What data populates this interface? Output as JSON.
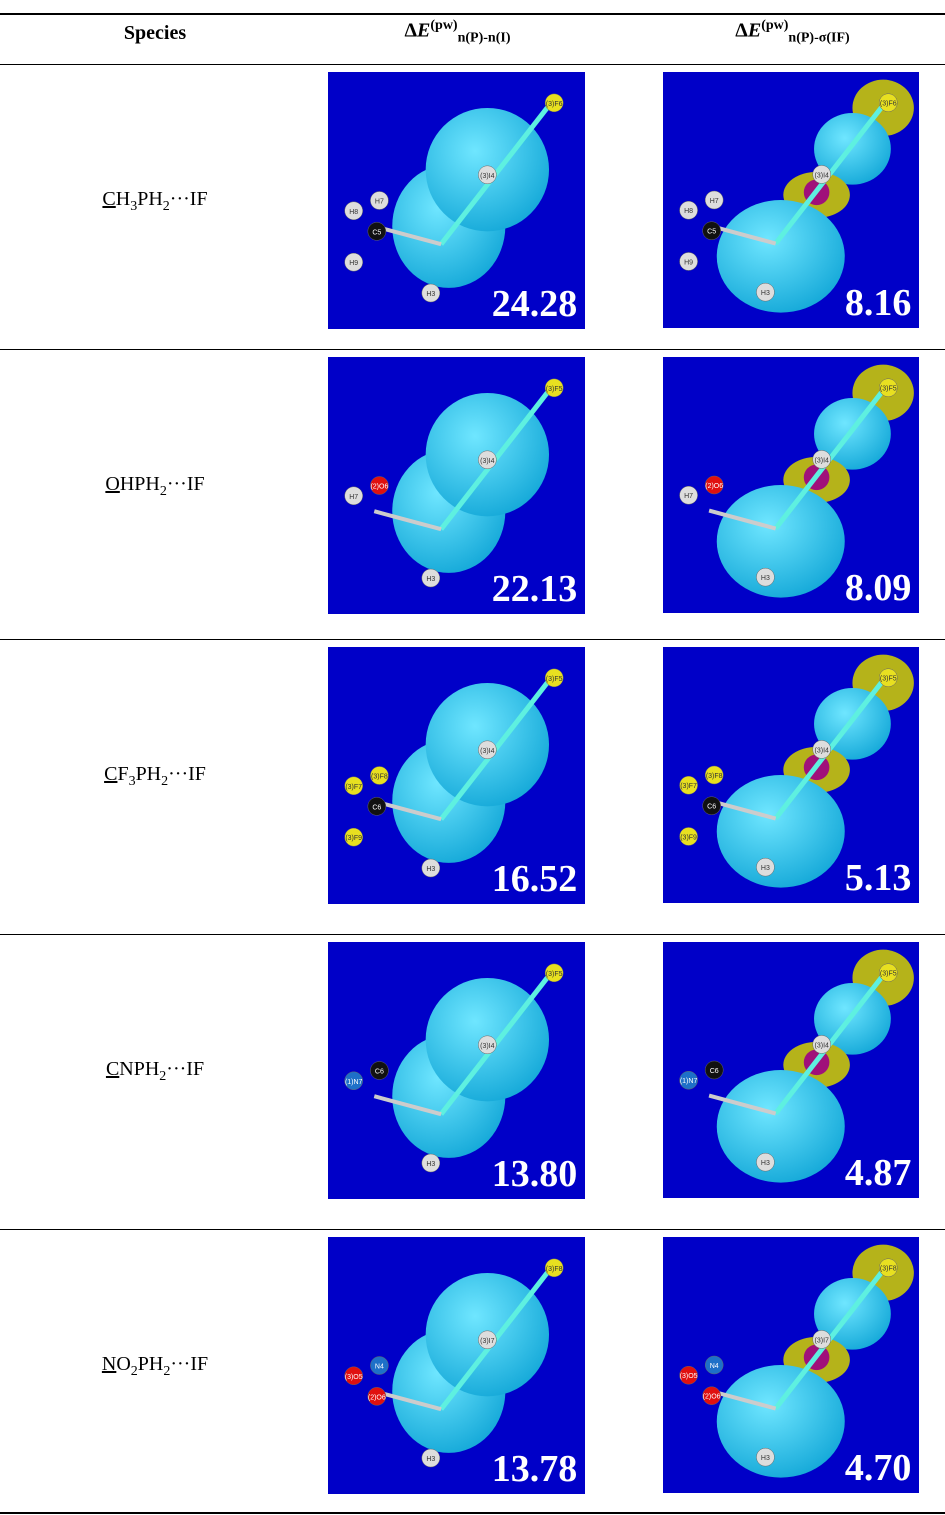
{
  "table": {
    "header": {
      "species": "Species",
      "col1": {
        "delta": "Δ",
        "symbol": "E",
        "sup": "(pw)",
        "sub": "n(P)-n(I)"
      },
      "col2": {
        "delta": "Δ",
        "symbol": "E",
        "sup": "(pw)",
        "sub": "n(P)-σ(IF)"
      }
    },
    "rows": [
      {
        "species": [
          {
            "u": "C"
          },
          {
            "t": "H"
          },
          {
            "sub": "3"
          },
          {
            "t": "PH"
          },
          {
            "sub": "2"
          },
          {
            "t": "···IF"
          }
        ],
        "atoms": [
          "(3)F6",
          "(3)I4",
          "H8",
          "H7",
          "C5",
          "H9",
          "H3"
        ],
        "energies": [
          "24.28",
          "8.16"
        ]
      },
      {
        "species": [
          {
            "u": "O"
          },
          {
            "t": "HPH"
          },
          {
            "sub": "2"
          },
          {
            "t": "···IF"
          }
        ],
        "atoms": [
          "(3)F5",
          "(3)I4",
          "H7",
          "(2)O6",
          "H3"
        ],
        "energies": [
          "22.13",
          "8.09"
        ]
      },
      {
        "species": [
          {
            "u": "C"
          },
          {
            "t": "F"
          },
          {
            "sub": "3"
          },
          {
            "t": "PH"
          },
          {
            "sub": "2"
          },
          {
            "t": "···IF"
          }
        ],
        "atoms": [
          "(3)F5",
          "(3)I4",
          "(3)F7",
          "(3)F8",
          "C6",
          "(3)F9",
          "H3"
        ],
        "energies": [
          "16.52",
          "5.13"
        ]
      },
      {
        "species": [
          {
            "u": "C"
          },
          {
            "t": "NPH"
          },
          {
            "sub": "2"
          },
          {
            "t": "···IF"
          }
        ],
        "atoms": [
          "(3)F5",
          "(3)I4",
          "(1)N7",
          "C6",
          "H3"
        ],
        "energies": [
          "13.80",
          "4.87"
        ]
      },
      {
        "species": [
          {
            "u": "N"
          },
          {
            "t": "O"
          },
          {
            "sub": "2"
          },
          {
            "t": "PH"
          },
          {
            "sub": "2"
          },
          {
            "t": "···IF"
          }
        ],
        "atoms": [
          "(3)F8",
          "(3)I7",
          "(3)O5",
          "N4",
          "(2)O6",
          "H3"
        ],
        "energies": [
          "13.78",
          "4.70"
        ]
      }
    ]
  }
}
